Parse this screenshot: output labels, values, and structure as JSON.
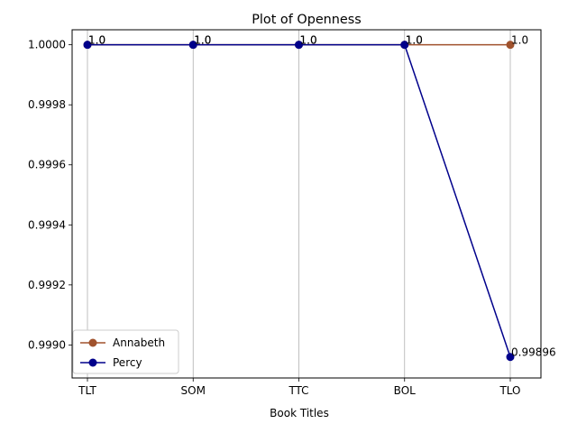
{
  "chart_data": {
    "type": "line",
    "title": "Plot of Openness",
    "xlabel": "Book Titles",
    "ylabel": "",
    "categories": [
      "TLT",
      "SOM",
      "TTC",
      "BOL",
      "TLO"
    ],
    "ylim": [
      0.99889,
      1.00005
    ],
    "yticks": [
      0.999,
      0.9992,
      0.9994,
      0.9996,
      0.9998,
      1.0
    ],
    "ytick_labels": [
      "0.9990",
      "0.9992",
      "0.9994",
      "0.9996",
      "0.9998",
      "1.0000"
    ],
    "grid": "vertical",
    "legend_position": "lower-left",
    "series": [
      {
        "name": "Annabeth",
        "color": "#a0522d",
        "values": [
          1.0,
          1.0,
          1.0,
          1.0,
          1.0
        ],
        "labels": [
          "1.0",
          "1.0",
          "1.0",
          "1.0",
          "1.0"
        ]
      },
      {
        "name": "Percy",
        "color": "#00008b",
        "values": [
          1.0,
          1.0,
          1.0,
          1.0,
          0.99896
        ],
        "labels": [
          "1.0",
          "1.0",
          "1.0",
          "1.0",
          "0.99896"
        ]
      }
    ]
  }
}
